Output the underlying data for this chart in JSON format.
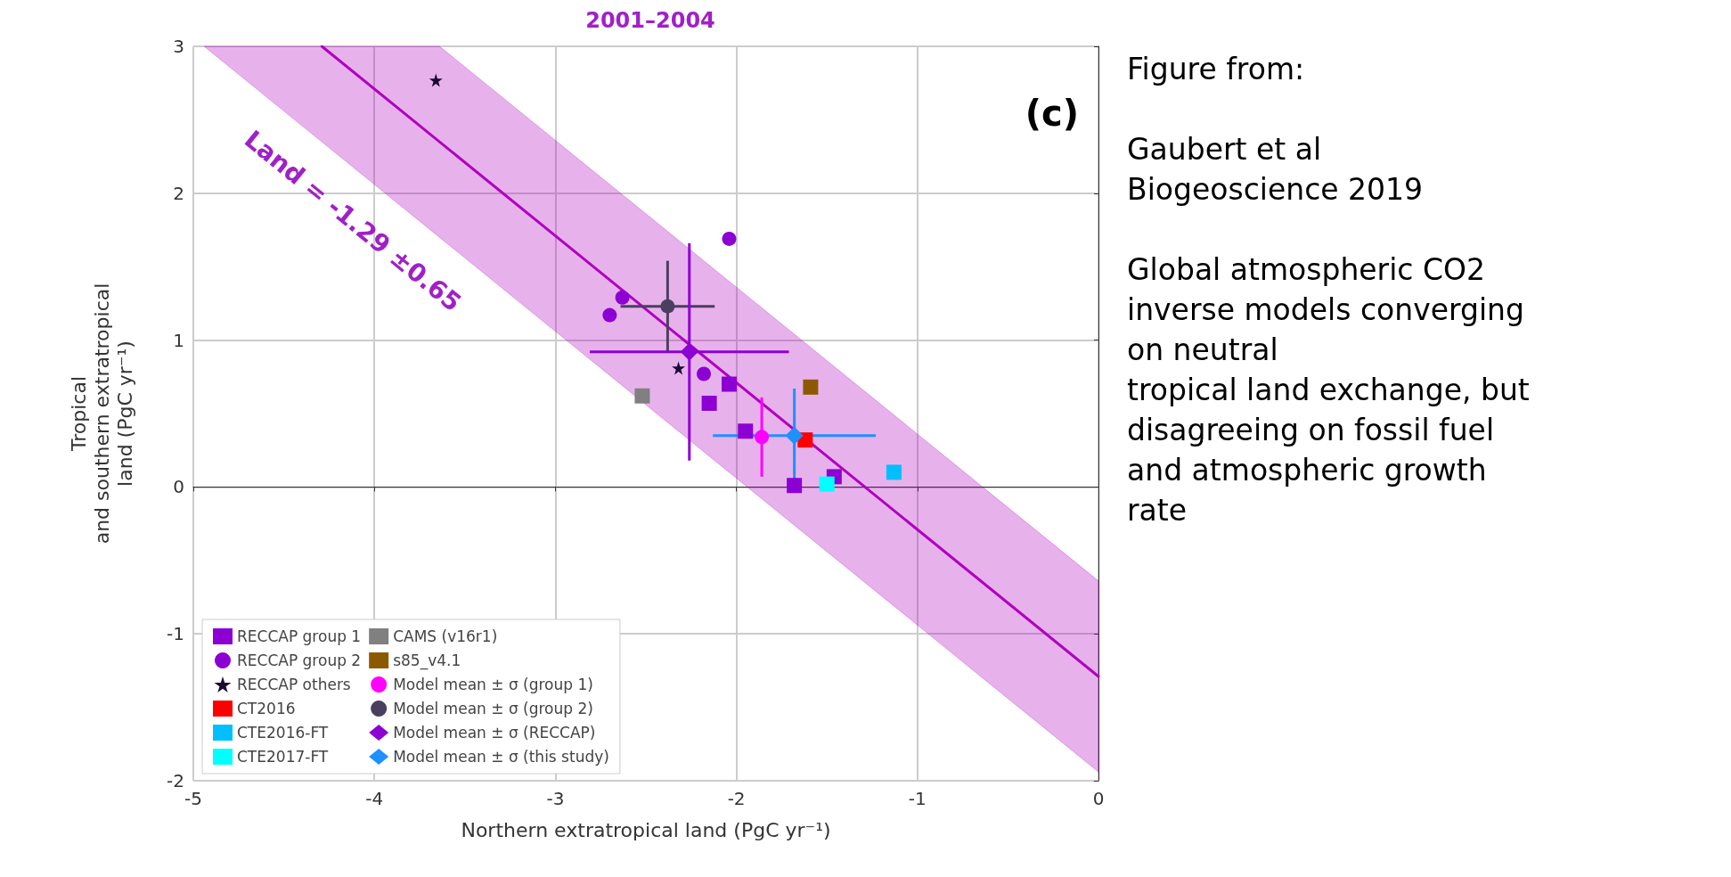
{
  "chart_data": {
    "type": "scatter",
    "title": "2001–2004",
    "xlabel": "Northern extratropical land (PgC yr⁻¹)",
    "ylabel": "Tropical\nand southern extratropical\nland (PgC yr⁻¹)",
    "xlim": [
      -5,
      0
    ],
    "xticks": [
      -5,
      -4,
      -3,
      -2,
      -1,
      0
    ],
    "ylim": [
      -2,
      3
    ],
    "yticks": [
      -2,
      -1,
      0,
      1,
      2,
      3
    ],
    "grid": true,
    "legend": "bottom left",
    "annotations": [
      "Land = -1.29 ±0.65",
      "(c)",
      "Figure from:\n\nGaubert et al\nBiogeoscience 2019\n\nGlobal atmospheric CO2\ninverse models converging\non neutral\ntropical land exchange, but\ndisagreeing on fossil fuel\nand atmospheric growth\nrate"
    ],
    "series": [
      {
        "type": "line",
        "color": "#b000c0",
        "x": [
          -4.94,
          -4.29,
          -3.64,
          0
        ],
        "values": [
          null,
          3,
          2.35,
          -1.29
        ],
        "lower": [
          3,
          2.35,
          1.7,
          -1.94
        ],
        "upper": [
          3,
          3,
          3,
          -0.64
        ]
      },
      {
        "name": "RECCAP group 1",
        "color": "#8c00d4",
        "marker": "square",
        "x": [
          -2.04,
          -2.15,
          -1.95,
          -1.68,
          -1.46
        ],
        "values": [
          0.7,
          0.57,
          0.38,
          0.01,
          0.07
        ]
      },
      {
        "name": "RECCAP group 2",
        "color": "#8c00d4",
        "marker": "circle",
        "x": [
          -2.04,
          -2.63,
          -2.7,
          -2.18
        ],
        "values": [
          1.69,
          1.29,
          1.17,
          0.77
        ]
      },
      {
        "name": "RECCAP others",
        "color": "#1a0a33",
        "marker": "star",
        "x": [
          -3.66,
          -2.32
        ],
        "values": [
          2.77,
          0.81
        ]
      },
      {
        "name": "CT2016",
        "color": "#ff0000",
        "marker": "square",
        "x": [
          -1.62
        ],
        "values": [
          0.32
        ]
      },
      {
        "name": "CTE2016-FT",
        "color": "#00bfff",
        "marker": "square",
        "x": [
          -1.13
        ],
        "values": [
          0.1
        ]
      },
      {
        "name": "CTE2017-FT",
        "color": "#00ffff",
        "marker": "square",
        "x": [
          -1.5
        ],
        "values": [
          0.02
        ]
      },
      {
        "name": "CAMS (v16r1)",
        "color": "#808080",
        "marker": "square",
        "x": [
          -2.52
        ],
        "values": [
          0.62
        ]
      },
      {
        "name": "s85_v4.1",
        "color": "#8b5a00",
        "marker": "square",
        "x": [
          -1.59
        ],
        "values": [
          0.68
        ]
      },
      {
        "name": "Model mean ± σ (group 1)",
        "color": "#ff00ff",
        "marker": "circle",
        "x": [
          -1.86
        ],
        "values": [
          0.34
        ],
        "errors": [
          0.27
        ]
      },
      {
        "name": "Model mean ± σ (group 2)",
        "color": "#4b3f5f",
        "marker": "circle",
        "x": [
          -2.38
        ],
        "values": [
          1.23
        ],
        "errors": [
          0.31
        ],
        "xerrors": [
          0.26
        ]
      },
      {
        "name": "Model mean ± σ (RECCAP)",
        "color": "#8c00d4",
        "marker": "diamond",
        "x": [
          -2.26
        ],
        "values": [
          0.92
        ],
        "errors": [
          0.74
        ],
        "xerrors": [
          0.55
        ]
      },
      {
        "name": "Model mean ± σ (this study)",
        "color": "#1e90ff",
        "marker": "diamond",
        "x": [
          -1.68
        ],
        "values": [
          0.35
        ],
        "errors": [
          0.32
        ],
        "xerrors": [
          0.45
        ]
      }
    ]
  }
}
